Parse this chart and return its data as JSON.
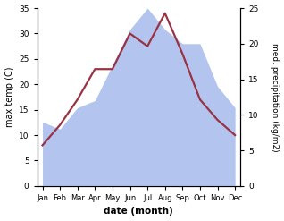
{
  "months": [
    "Jan",
    "Feb",
    "Mar",
    "Apr",
    "May",
    "Jun",
    "Jul",
    "Aug",
    "Sep",
    "Oct",
    "Nov",
    "Dec"
  ],
  "temperature": [
    8,
    12,
    17,
    23,
    23,
    30,
    27.5,
    34,
    26,
    17,
    13,
    10
  ],
  "precipitation_right": [
    9,
    8,
    11,
    12,
    17,
    22,
    25,
    22,
    20,
    20,
    14,
    11
  ],
  "temp_color": "#993344",
  "precip_color": "#b3c5ee",
  "xlabel": "date (month)",
  "ylabel_left": "max temp (C)",
  "ylabel_right": "med. precipitation (kg/m2)",
  "ylim_left": [
    0,
    35
  ],
  "ylim_right": [
    0,
    25
  ],
  "yticks_left": [
    0,
    5,
    10,
    15,
    20,
    25,
    30,
    35
  ],
  "yticks_right": [
    0,
    5,
    10,
    15,
    20,
    25
  ],
  "background_color": "#ffffff",
  "temp_linewidth": 1.6
}
